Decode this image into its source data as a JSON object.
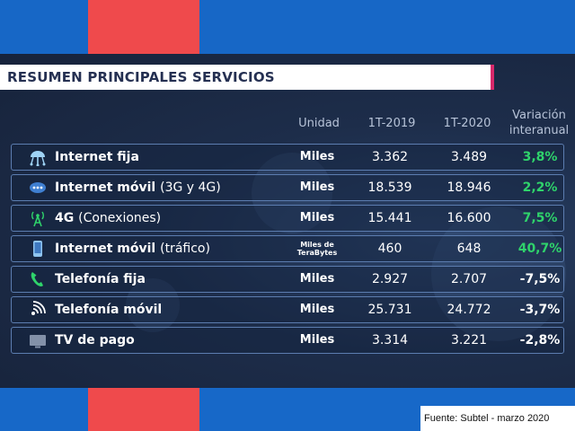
{
  "title": "RESUMEN PRINCIPALES SERVICIOS",
  "headers": {
    "unidad": "Unidad",
    "y2019": "1T-2019",
    "y2020": "1T-2020",
    "variacion_l1": "Variación",
    "variacion_l2": "interanual"
  },
  "rows": [
    {
      "label": "Internet fija",
      "paren": "",
      "unit_l1": "Miles",
      "unit_l2": "",
      "v2019": "3.362",
      "v2020": "3.489",
      "variation": "3,8%",
      "var_color": "#2fd36b",
      "icon": "globe-network-icon"
    },
    {
      "label": "Internet móvil",
      "paren": "(3G y 4G)",
      "unit_l1": "Miles",
      "unit_l2": "",
      "v2019": "18.539",
      "v2020": "18.946",
      "variation": "2,2%",
      "var_color": "#2fd36b",
      "icon": "mobile-network-icon"
    },
    {
      "label": "4G",
      "paren": "(Conexiones)",
      "unit_l1": "Miles",
      "unit_l2": "",
      "v2019": "15.441",
      "v2020": "16.600",
      "variation": "7,5%",
      "var_color": "#2fd36b",
      "icon": "antenna-icon"
    },
    {
      "label": "Internet móvil",
      "paren": "(tráfico)",
      "unit_l1": "Miles de",
      "unit_l2": "TeraBytes",
      "v2019": "460",
      "v2020": "648",
      "variation": "40,7%",
      "var_color": "#2fd36b",
      "icon": "smartphone-icon"
    },
    {
      "label": "Telefonía fija",
      "paren": "",
      "unit_l1": "Miles",
      "unit_l2": "",
      "v2019": "2.927",
      "v2020": "2.707",
      "variation": "-7,5%",
      "var_color": "#ffffff",
      "icon": "phone-icon"
    },
    {
      "label": "Telefonía móvil",
      "paren": "",
      "unit_l1": "Miles",
      "unit_l2": "",
      "v2019": "25.731",
      "v2020": "24.772",
      "variation": "-3,7%",
      "var_color": "#ffffff",
      "icon": "signal-waves-icon"
    },
    {
      "label": "TV de pago",
      "paren": "",
      "unit_l1": "Miles",
      "unit_l2": "",
      "v2019": "3.314",
      "v2020": "3.221",
      "variation": "-2,8%",
      "var_color": "#ffffff",
      "icon": "tv-icon"
    }
  ],
  "source": "Fuente: Subtel - marzo 2020",
  "colors": {
    "accent_red": "#ef4a4c",
    "brand_blue": "#1767c6",
    "title_stripe": "#d8286a",
    "positive": "#2fd36b"
  }
}
